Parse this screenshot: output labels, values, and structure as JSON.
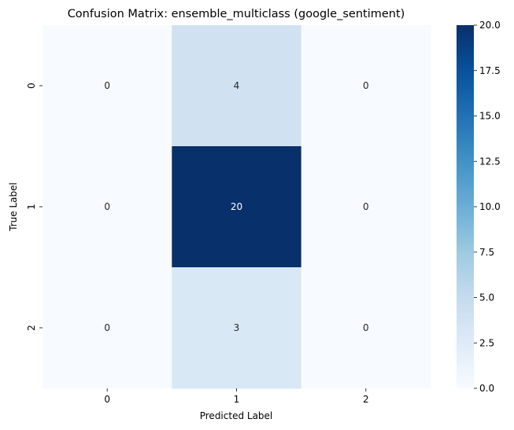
{
  "chart_data": {
    "type": "heatmap",
    "title": "Confusion Matrix: ensemble_multiclass (google_sentiment)",
    "xlabel": "Predicted Label",
    "ylabel": "True Label",
    "x_categories": [
      "0",
      "1",
      "2"
    ],
    "y_categories": [
      "0",
      "1",
      "2"
    ],
    "values": [
      [
        0,
        4,
        0
      ],
      [
        0,
        20,
        0
      ],
      [
        0,
        3,
        0
      ]
    ],
    "colormap": "Blues",
    "color_range": [
      0,
      20
    ],
    "colorbar_ticks": [
      "0.0",
      "2.5",
      "5.0",
      "7.5",
      "10.0",
      "12.5",
      "15.0",
      "17.5",
      "20.0"
    ],
    "colorbar_tick_values": [
      0,
      2.5,
      5,
      7.5,
      10,
      12.5,
      15,
      17.5,
      20
    ],
    "annotation_colors": {
      "light_cell": "#262626",
      "dark_cell": "#ffffff"
    },
    "grid": false,
    "legend": "colorbar-right"
  }
}
